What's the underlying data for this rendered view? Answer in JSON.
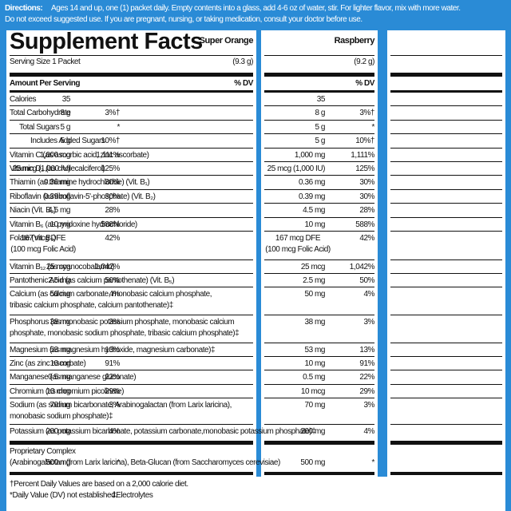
{
  "directions": {
    "label": "Directions:",
    "lines": [
      "Ages 14 and up, one (1) packet daily. Empty contents into a glass, add 4-6 oz of water, stir. For lighter flavor, mix with more water.",
      "Do not exceed suggested use. If you are pregnant, nursing, or taking medication, consult your doctor before use."
    ]
  },
  "title": "Supplement Facts",
  "serving_size": "Serving Size 1 Packet",
  "amount_per_serving": "Amount Per Serving",
  "products": [
    {
      "name": "Super Orange",
      "serving": "(9.3 g)",
      "dv_header": "% DV"
    },
    {
      "name": "Raspberry",
      "serving": "(9.2 g)",
      "dv_header": "% DV"
    }
  ],
  "rows": [
    {
      "name": "Calories",
      "values": [
        {
          "amount": "35"
        },
        {
          "amount": "35"
        }
      ]
    },
    {
      "name": "Total Carbohydrate",
      "values": [
        {
          "amount": "8 g",
          "dv": "3%†"
        },
        {
          "amount": "8 g",
          "dv": "3%†"
        }
      ]
    },
    {
      "name": "Total Sugars",
      "values": [
        {
          "amount": "5 g",
          "dv": "*"
        },
        {
          "amount": "5 g",
          "dv": "*"
        }
      ]
    },
    {
      "name": "Includes Added Sugars",
      "values": [
        {
          "amount": "5 g",
          "dv": "10%†"
        },
        {
          "amount": "5 g",
          "dv": "10%†"
        }
      ]
    },
    {
      "name": "Vitamin C (as ascorbic acid, zinc ascorbate)",
      "values": [
        {
          "amount": "1,000 mg",
          "dv": "1,111%"
        },
        {
          "amount": "1,000 mg",
          "dv": "1,111%"
        }
      ]
    },
    {
      "name": "Vitamin D₃ (as cholecalciferol)",
      "values": [
        {
          "amount": "25 mcg (1,000 IU)",
          "dv": "125%"
        },
        {
          "amount": "25 mcg (1,000 IU)",
          "dv": "125%"
        }
      ]
    },
    {
      "name": "Thiamin (as thiamine hydrochloride) (Vit. B₁)",
      "values": [
        {
          "amount": "0.36 mg",
          "dv": "30%"
        },
        {
          "amount": "0.36 mg",
          "dv": "30%"
        }
      ]
    },
    {
      "name": "Riboflavin (as riboflavin-5'-phosphate) (Vit. B₂)",
      "values": [
        {
          "amount": "0.39 mg",
          "dv": "30%"
        },
        {
          "amount": "0.39 mg",
          "dv": "30%"
        }
      ]
    },
    {
      "name": "Niacin (Vit. B₃)",
      "values": [
        {
          "amount": "4.5 mg",
          "dv": "28%"
        },
        {
          "amount": "4.5 mg",
          "dv": "28%"
        }
      ]
    },
    {
      "name": "Vitamin B₆ (as pyridoxine hydrochloride)",
      "values": [
        {
          "amount": "10 mg",
          "dv": "588%"
        },
        {
          "amount": "10 mg",
          "dv": "588%"
        }
      ]
    },
    {
      "name": "Folate (Vit. B₉)",
      "values": [
        {
          "amount": [
            "167 mcg DFE",
            "(100 mcg Folic Acid)"
          ],
          "dv": "42%"
        },
        {
          "amount": [
            "167 mcg DFE",
            "(100 mcg Folic Acid)"
          ],
          "dv": "42%"
        }
      ]
    },
    {
      "name": "Vitamin B₁₂ (as cyanocobalamin)",
      "values": [
        {
          "amount": "25 mcg",
          "dv": "1,042%"
        },
        {
          "amount": "25 mcg",
          "dv": "1,042%"
        }
      ]
    },
    {
      "name": "Pantothenic Acid (as calcium pantothenate) (Vit. B₅)",
      "values": [
        {
          "amount": "2.5 mg",
          "dv": "50%"
        },
        {
          "amount": "2.5 mg",
          "dv": "50%"
        }
      ]
    },
    {
      "name": [
        "Calcium (as calcium carbonate, monobasic calcium phosphate,",
        "tribasic calcium phosphate, calcium pantothenate)‡"
      ],
      "values": [
        {
          "amount": "50 mg",
          "dv": "4%"
        },
        {
          "amount": "50 mg",
          "dv": "4%"
        }
      ]
    },
    {
      "name": [
        "Phosphorus (as monobasic potassium phosphate, monobasic calcium",
        "phosphate, monobasic sodium phosphate, tribasic calcium phosphate)‡"
      ],
      "values": [
        {
          "amount": "38 mg",
          "dv": "3%"
        },
        {
          "amount": "38 mg",
          "dv": "3%"
        }
      ]
    },
    {
      "name": "Magnesium (as magnesium hydroxide, magnesium carbonate)‡",
      "values": [
        {
          "amount": "53 mg",
          "dv": "13%"
        },
        {
          "amount": "53 mg",
          "dv": "13%"
        }
      ]
    },
    {
      "name": "Zinc (as zinc ascorbate)",
      "values": [
        {
          "amount": "10 mg",
          "dv": "91%"
        },
        {
          "amount": "10 mg",
          "dv": "91%"
        }
      ]
    },
    {
      "name": "Manganese (as manganese gluconate)",
      "values": [
        {
          "amount": "0.5 mg",
          "dv": "22%"
        },
        {
          "amount": "0.5 mg",
          "dv": "22%"
        }
      ]
    },
    {
      "name": "Chromium (as chromium picolinate)",
      "values": [
        {
          "amount": "10 mcg",
          "dv": "29%"
        },
        {
          "amount": "10 mcg",
          "dv": "29%"
        }
      ]
    },
    {
      "name": [
        "Sodium (as sodium bicarbonate, Arabinogalactan (from Larix laricina),",
        "monobasic sodium phosphate)‡"
      ],
      "values": [
        {
          "amount": "70 mg",
          "dv": "3%"
        },
        {
          "amount": "70 mg",
          "dv": "3%"
        }
      ]
    },
    {
      "name": "Potassium (as potassium bicarbonate, potassium carbonate,monobasic potassium phosphate)‡",
      "values": [
        {
          "amount": "200 mg",
          "dv": "4%"
        },
        {
          "amount": "200 mg",
          "dv": "4%"
        }
      ]
    },
    {
      "name": [
        "Proprietary Complex",
        "(Arabinogalactan (from Larix laricina), Beta-Glucan (from Saccharomyces cerevisiae)"
      ],
      "values": [
        {
          "amount": "500 mg",
          "dv": "*"
        },
        {
          "amount": "500 mg",
          "dv": "*"
        }
      ]
    }
  ],
  "footnotes": [
    "†Percent Daily Values are based on a 2,000 calorie diet.",
    "*Daily Value (DV) not established.",
    "‡Electrolytes"
  ]
}
